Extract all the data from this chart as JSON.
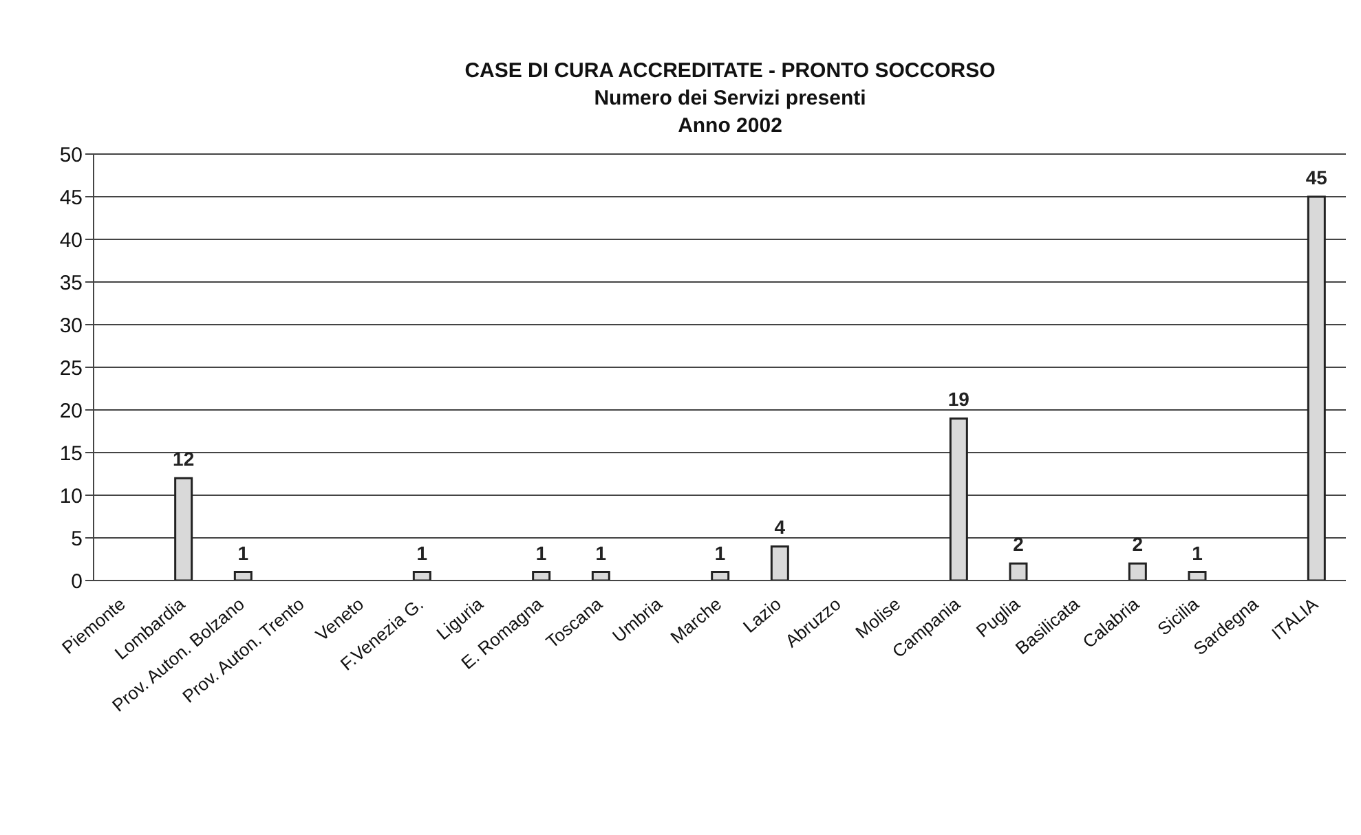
{
  "chart_data": {
    "type": "bar",
    "title": "CASE DI CURA ACCREDITATE - PRONTO SOCCORSO",
    "subtitle": "Numero dei Servizi presenti",
    "annotations": [
      "Anno 2002"
    ],
    "categories": [
      "Piemonte",
      "Lombardia",
      "Prov. Auton. Bolzano",
      "Prov. Auton. Trento",
      "Veneto",
      "F.Venezia G.",
      "Liguria",
      "E. Romagna",
      "Toscana",
      "Umbria",
      "Marche",
      "Lazio",
      "Abruzzo",
      "Molise",
      "Campania",
      "Puglia",
      "Basilicata",
      "Calabria",
      "Sicilia",
      "Sardegna",
      "ITALIA"
    ],
    "values": [
      0,
      12,
      1,
      0,
      0,
      1,
      0,
      1,
      1,
      0,
      1,
      4,
      0,
      0,
      19,
      2,
      0,
      2,
      1,
      0,
      45
    ],
    "value_labels": [
      null,
      "12",
      "1",
      null,
      null,
      "1",
      null,
      "1",
      "1",
      null,
      "1",
      "4",
      null,
      null,
      "19",
      "2",
      null,
      "2",
      "1",
      null,
      "45"
    ],
    "color": "#d9d9d9",
    "ylim": [
      0,
      50
    ],
    "yticks": [
      0,
      5,
      10,
      15,
      20,
      25,
      30,
      35,
      40,
      45,
      50
    ],
    "grid": "y"
  }
}
